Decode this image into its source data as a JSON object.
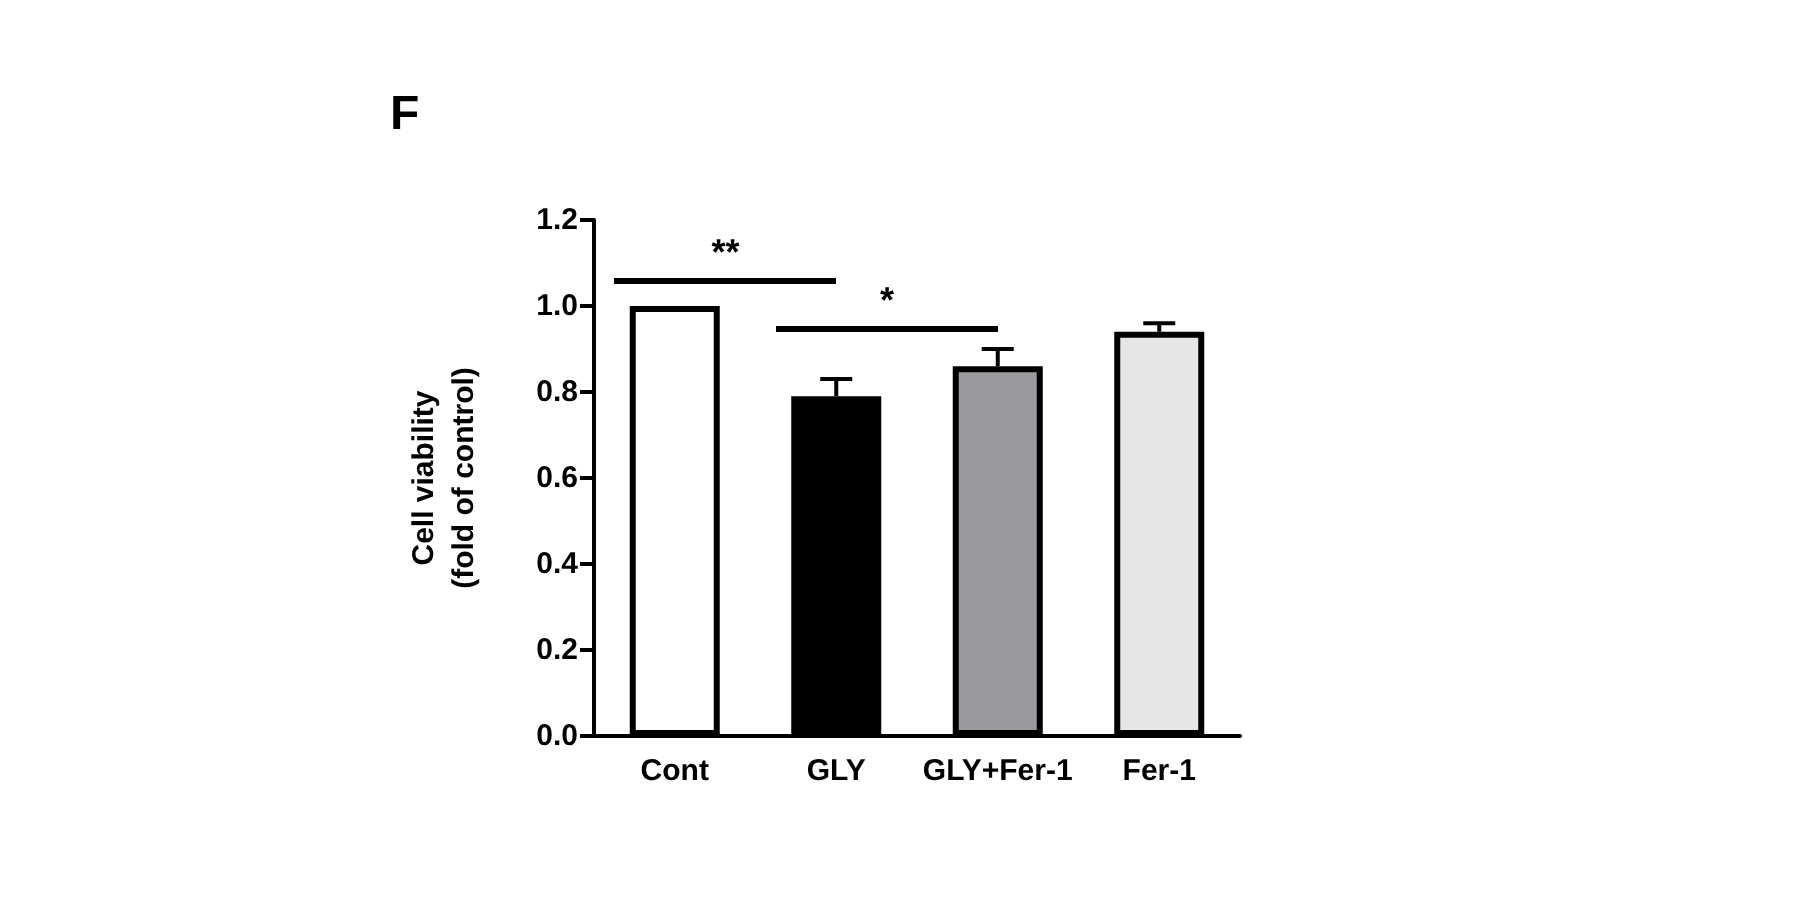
{
  "chart_data": {
    "type": "bar",
    "title": "F",
    "ylabel": "Cell viability\n(fold of control)",
    "categories": [
      "Cont",
      "GLY",
      "GLY+Fer-1",
      "Fer-1"
    ],
    "values": [
      1.0,
      0.79,
      0.86,
      0.94
    ],
    "colors": [
      "#ffffff",
      "#000000",
      "#9b9b9f",
      "#e6e6e6"
    ],
    "errors": [
      null,
      0.04,
      0.04,
      0.02
    ],
    "ylim": [
      0,
      1.2
    ],
    "yticks": [
      {
        "value": 0,
        "label": "0.0"
      },
      {
        "value": 0.2,
        "label": "0.2"
      },
      {
        "value": 0.4,
        "label": "0.4"
      },
      {
        "value": 0.6,
        "label": "0.6"
      },
      {
        "value": 0.8,
        "label": "0.8"
      },
      {
        "value": 1,
        "label": "1.0"
      },
      {
        "value": 1.2,
        "label": "1.2"
      }
    ],
    "annotations": [
      "**",
      "*"
    ],
    "grid": false
  }
}
